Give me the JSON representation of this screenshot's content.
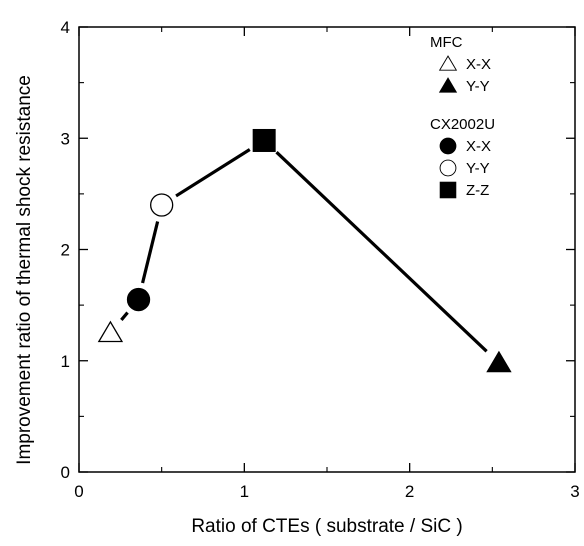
{
  "chart_data": {
    "type": "line",
    "title": "",
    "xlabel": "Ratio of CTEs ( substrate / SiC )",
    "ylabel": "Improvement ratio of thermal shock resistance",
    "xlim": [
      0,
      3
    ],
    "ylim": [
      0,
      4
    ],
    "xticks": [
      "0",
      "1",
      "2",
      "3"
    ],
    "yticks": [
      "0",
      "1",
      "2",
      "3",
      "4"
    ],
    "grid": false,
    "connecting_line": {
      "order": [
        "MFC X-X",
        "CX2002U X-X",
        "CX2002U Y-Y",
        "CX2002U Z-Z",
        "MFC Y-Y"
      ]
    },
    "points": [
      {
        "group": "MFC",
        "direction": "X-X",
        "marker": "triangle-open",
        "x": 0.19,
        "y": 1.25
      },
      {
        "group": "CX2002U",
        "direction": "X-X",
        "marker": "circle-filled",
        "x": 0.36,
        "y": 1.55
      },
      {
        "group": "CX2002U",
        "direction": "Y-Y",
        "marker": "circle-open",
        "x": 0.5,
        "y": 2.4
      },
      {
        "group": "CX2002U",
        "direction": "Z-Z",
        "marker": "square-filled",
        "x": 1.12,
        "y": 2.98
      },
      {
        "group": "MFC",
        "direction": "Y-Y",
        "marker": "triangle-filled",
        "x": 2.54,
        "y": 0.98
      }
    ],
    "legend": {
      "placement": "top-right",
      "groups": [
        {
          "title": "MFC",
          "entries": [
            {
              "label": "X-X",
              "marker": "triangle-open"
            },
            {
              "label": "Y-Y",
              "marker": "triangle-filled"
            }
          ]
        },
        {
          "title": "CX2002U",
          "entries": [
            {
              "label": "X-X",
              "marker": "circle-filled"
            },
            {
              "label": "Y-Y",
              "marker": "circle-open"
            },
            {
              "label": "Z-Z",
              "marker": "square-filled"
            }
          ]
        }
      ]
    }
  }
}
